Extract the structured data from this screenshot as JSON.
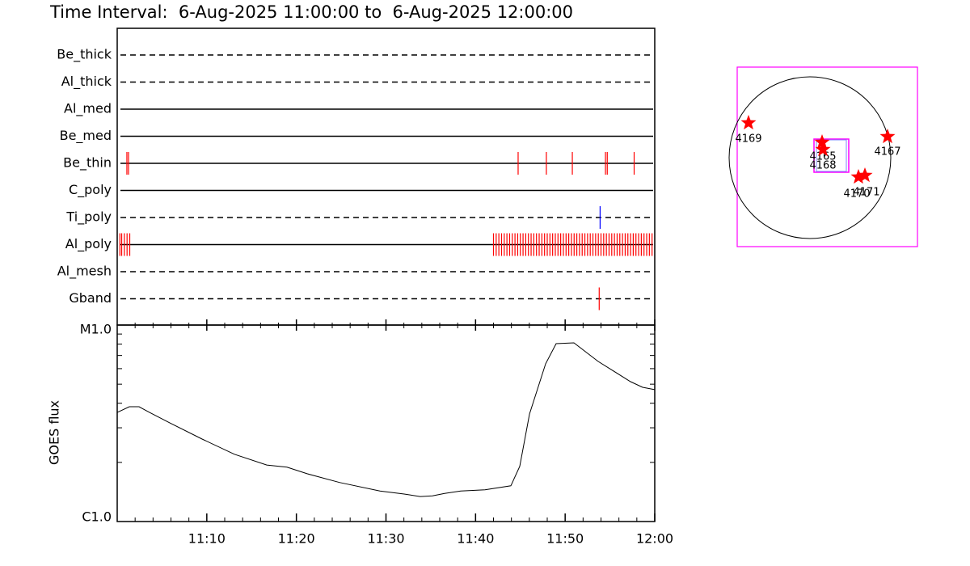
{
  "chart_data": [
    {
      "type": "timeline",
      "title": "Time Interval:  6-Aug-2025 11:00:00 to  6-Aug-2025 12:00:00",
      "xlim": [
        0,
        60
      ],
      "channels": [
        {
          "name": "Be_thick",
          "style": "dashed",
          "events": []
        },
        {
          "name": "Al_thick",
          "style": "dashed",
          "events": []
        },
        {
          "name": "Al_med",
          "style": "solid",
          "events": []
        },
        {
          "name": "Be_med",
          "style": "solid",
          "events": []
        },
        {
          "name": "Be_thin",
          "style": "solid",
          "color": "#ff0000",
          "events": [
            1.08,
            1.26,
            44.75,
            47.9,
            50.8,
            54.5,
            54.7,
            57.7
          ]
        },
        {
          "name": "C_poly",
          "style": "solid",
          "events": []
        },
        {
          "name": "Ti_poly",
          "style": "dashed",
          "color": "#0000ff",
          "events": [
            53.9
          ]
        },
        {
          "name": "Al_poly",
          "style": "solid",
          "color": "#ff0000",
          "events": [
            0.3,
            0.5,
            0.8,
            1.1,
            1.4,
            42.0,
            42.3,
            42.6,
            42.9,
            43.2,
            43.5,
            43.8,
            44.1,
            44.4,
            44.7,
            45.0,
            45.3,
            45.6,
            45.9,
            46.2,
            46.5,
            46.8,
            47.1,
            47.4,
            47.7,
            48.0,
            48.3,
            48.6,
            48.9,
            49.2,
            49.5,
            49.8,
            50.1,
            50.4,
            50.7,
            51.0,
            51.3,
            51.6,
            51.9,
            52.2,
            52.5,
            52.8,
            53.1,
            53.4,
            53.7,
            54.0,
            54.3,
            54.6,
            54.9,
            55.2,
            55.5,
            55.8,
            56.1,
            56.4,
            56.7,
            57.0,
            57.3,
            57.6,
            57.9,
            58.2,
            58.5,
            58.8,
            59.1,
            59.4,
            59.7
          ]
        },
        {
          "name": "Al_mesh",
          "style": "dashed",
          "events": []
        },
        {
          "name": "Gband",
          "style": "dashed",
          "color": "#ff0000",
          "events": [
            53.8
          ]
        }
      ]
    },
    {
      "type": "line",
      "log_scale": true,
      "color": "#000000",
      "ylabel": "GOES flux",
      "xlim": [
        0,
        60
      ],
      "xticks": [
        {
          "value": 10,
          "label": "11:10"
        },
        {
          "value": 20,
          "label": "11:20"
        },
        {
          "value": 30,
          "label": "11:30"
        },
        {
          "value": 40,
          "label": "11:40"
        },
        {
          "value": 50,
          "label": "11:50"
        },
        {
          "value": 60,
          "label": "12:00"
        }
      ],
      "xminor": [
        2,
        4,
        6,
        8,
        12,
        14,
        16,
        18,
        22,
        24,
        26,
        28,
        32,
        34,
        36,
        38,
        42,
        44,
        46,
        48,
        52,
        54,
        56,
        58
      ],
      "ylim": [
        1e-06,
        1e-05
      ],
      "yticks": [
        {
          "value": 1e-06,
          "label": "C1.0"
        },
        {
          "value": 1e-05,
          "label": "M1.0"
        }
      ],
      "yminor": [
        2e-06,
        3e-06,
        4e-06,
        5e-06,
        6e-06,
        7e-06,
        8e-06,
        9e-06
      ],
      "x": [
        0,
        1.35,
        2.44,
        3.61,
        5.86,
        9.47,
        13.08,
        16.69,
        18.95,
        21.2,
        24.81,
        29.32,
        32.03,
        33.83,
        35.19,
        36.54,
        38.35,
        41.05,
        43.94,
        44.93,
        46.02,
        47.82,
        48.99,
        50.98,
        53.68,
        57.29,
        58.65,
        60
      ],
      "values": [
        3.59e-06,
        3.84e-06,
        3.84e-06,
        3.59e-06,
        3.18e-06,
        2.63e-06,
        2.2e-06,
        1.94e-06,
        1.89e-06,
        1.75e-06,
        1.58e-06,
        1.43e-06,
        1.38e-06,
        1.34e-06,
        1.35e-06,
        1.39e-06,
        1.43e-06,
        1.45e-06,
        1.52e-06,
        1.91e-06,
        3.53e-06,
        6.35e-06,
        8.04e-06,
        8.12e-06,
        6.53e-06,
        5.15e-06,
        4.82e-06,
        4.69e-06
      ]
    },
    {
      "type": "map",
      "box_color": "#ff00ff",
      "star_color": "#ff0000",
      "regions": [
        {
          "label": "4169"
        },
        {
          "label": "4165"
        },
        {
          "label": "4168"
        },
        {
          "label": "4167"
        },
        {
          "label": "4170"
        },
        {
          "label": "4171"
        }
      ]
    }
  ]
}
